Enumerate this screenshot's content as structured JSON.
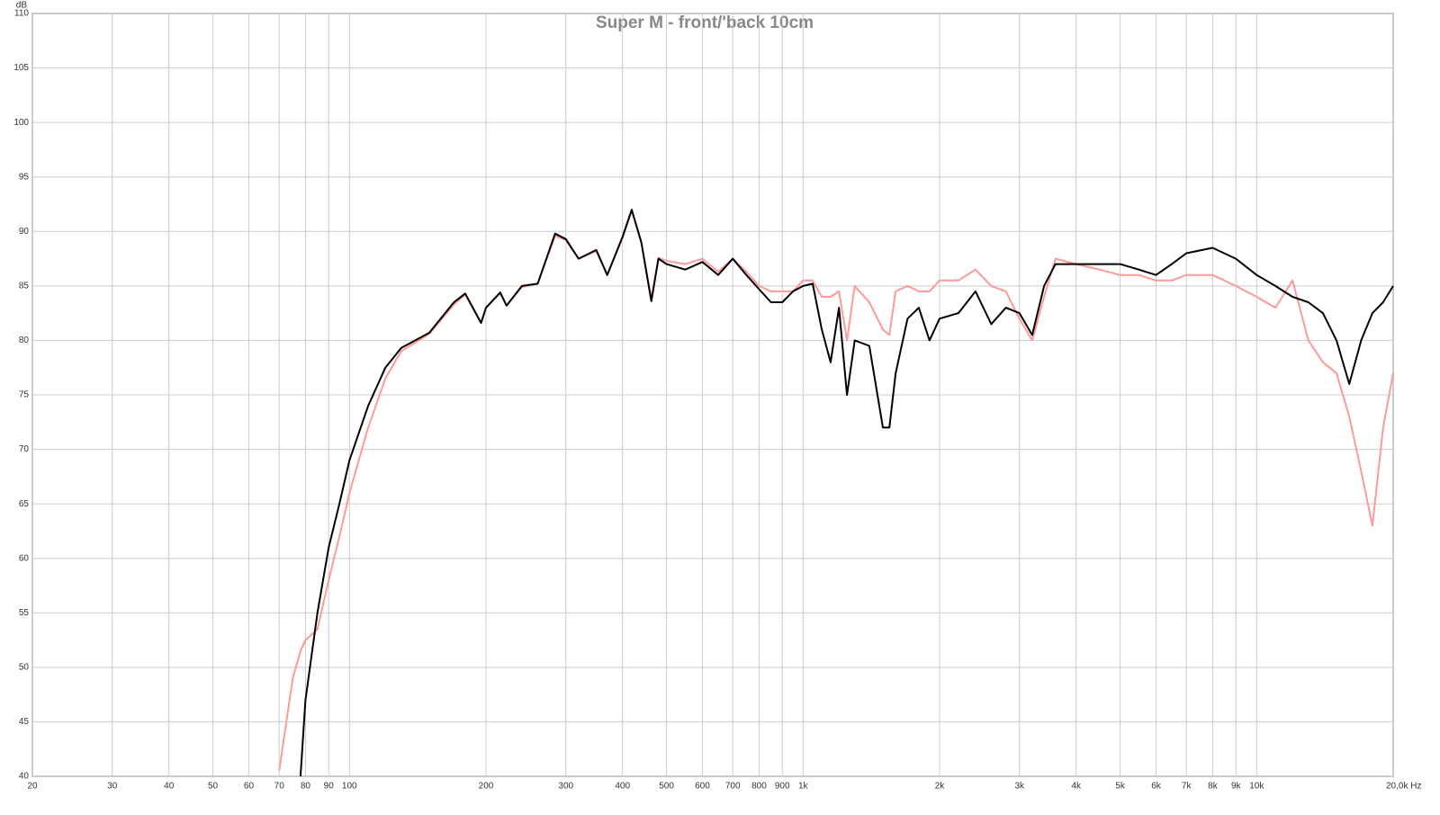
{
  "chart_data": {
    "type": "line",
    "title": "Super M - front/'back 10cm",
    "y_label": "dB",
    "log_x": true,
    "grid": true,
    "xlim": [
      20,
      20000
    ],
    "ylim": [
      40,
      110
    ],
    "xticks": [
      20,
      30,
      40,
      50,
      60,
      70,
      80,
      90,
      100,
      200,
      300,
      400,
      500,
      600,
      700,
      800,
      900,
      {
        "value": 1000,
        "label": "1k"
      },
      {
        "value": 2000,
        "label": "2k"
      },
      {
        "value": 3000,
        "label": "3k"
      },
      {
        "value": 4000,
        "label": "4k"
      },
      {
        "value": 5000,
        "label": "5k"
      },
      {
        "value": 6000,
        "label": "6k"
      },
      {
        "value": 7000,
        "label": "7k"
      },
      {
        "value": 8000,
        "label": "8k"
      },
      {
        "value": 9000,
        "label": "9k"
      },
      {
        "value": 10000,
        "label": "10k"
      },
      {
        "value": 20000,
        "label": "20,0k Hz"
      }
    ],
    "yticks": [
      40,
      45,
      50,
      55,
      60,
      65,
      70,
      75,
      80,
      85,
      90,
      95,
      100,
      105,
      110
    ],
    "x": [
      70,
      72,
      75,
      78,
      80,
      85,
      90,
      95,
      100,
      110,
      120,
      130,
      150,
      170,
      180,
      195,
      200,
      215,
      222,
      240,
      260,
      284,
      300,
      320,
      350,
      370,
      400,
      419,
      440,
      463,
      480,
      500,
      550,
      600,
      650,
      700,
      750,
      800,
      850,
      900,
      950,
      1000,
      1050,
      1100,
      1150,
      1200,
      1250,
      1300,
      1400,
      1500,
      1550,
      1600,
      1700,
      1800,
      1900,
      2000,
      2200,
      2400,
      2600,
      2800,
      3000,
      3200,
      3400,
      3600,
      4000,
      4500,
      5000,
      5500,
      6000,
      6500,
      7000,
      8000,
      9000,
      10000,
      11000,
      12000,
      13000,
      14000,
      15000,
      16000,
      17000,
      18000,
      19000,
      20000
    ],
    "series": [
      {
        "color": "#ff9999",
        "values": [
          40.5,
          44,
          49,
          51.5,
          52.5,
          53.5,
          58,
          62,
          66,
          72,
          76.5,
          79,
          80.6,
          83.3,
          84.2,
          81.6,
          83,
          84.3,
          83.2,
          84.9,
          85.2,
          89.6,
          89.2,
          87.5,
          88.2,
          86,
          89.4,
          91.9,
          89,
          83.8,
          87.6,
          87.3,
          87,
          87.5,
          86.3,
          87.5,
          86.3,
          85,
          84.5,
          84.5,
          84.5,
          85.5,
          85.5,
          84,
          84,
          84.5,
          80,
          85,
          83.5,
          81,
          80.5,
          84.5,
          85,
          84.5,
          84.5,
          85.5,
          85.5,
          86.5,
          85,
          84.5,
          82,
          80,
          84,
          87.5,
          87,
          86.5,
          86,
          86,
          85.5,
          85.5,
          86,
          86,
          85,
          84,
          83,
          85.5,
          80,
          78,
          77,
          73,
          68,
          63,
          72,
          77
        ]
      },
      {
        "color": "#000000",
        "values": [
          null,
          null,
          null,
          40,
          47,
          55,
          61,
          65,
          69,
          74,
          77.5,
          79.3,
          80.7,
          83.5,
          84.3,
          81.6,
          83,
          84.4,
          83.2,
          85,
          85.2,
          89.8,
          89.3,
          87.5,
          88.3,
          86,
          89.5,
          92,
          89,
          83.6,
          87.5,
          87,
          86.5,
          87.2,
          86,
          87.5,
          86,
          84.7,
          83.5,
          83.5,
          84.5,
          85,
          85.2,
          81,
          78,
          83,
          75,
          80,
          79.5,
          72,
          72,
          77,
          82,
          83,
          80,
          82,
          82.5,
          84.5,
          81.5,
          83,
          82.5,
          80.5,
          85,
          87,
          87,
          87,
          87,
          86.5,
          86,
          87,
          88,
          88.5,
          87.5,
          86,
          85,
          84,
          83.5,
          82.5,
          80,
          76,
          80,
          82.5,
          83.5,
          85
        ]
      }
    ]
  }
}
